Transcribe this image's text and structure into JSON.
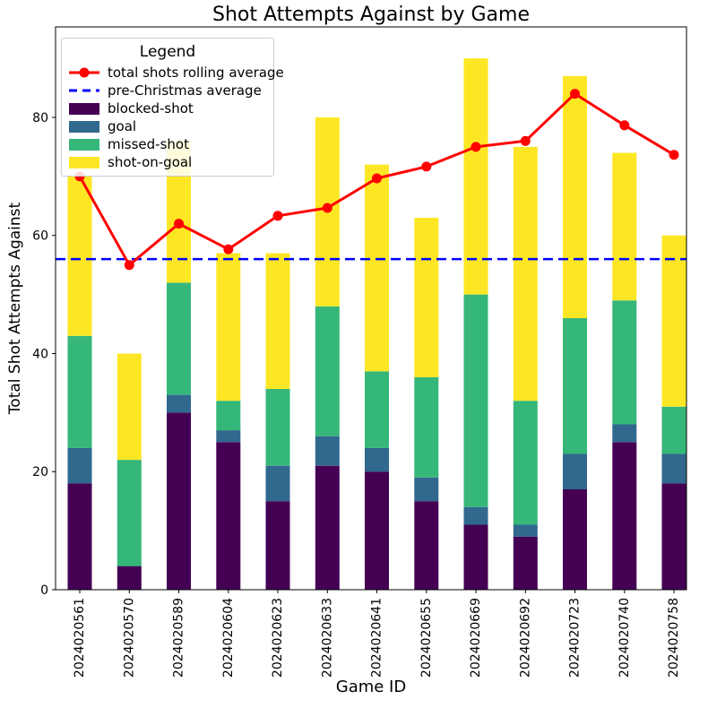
{
  "legend": {
    "title": "Legend",
    "entries": [
      {
        "label": "total shots rolling average",
        "type": "line-marker",
        "color": "#ff0000"
      },
      {
        "label": "pre-Christmas average",
        "type": "dashed-line",
        "color": "#0000ff"
      },
      {
        "label": "blocked-shot",
        "type": "patch",
        "color": "#440154"
      },
      {
        "label": "goal",
        "type": "patch",
        "color": "#31688e"
      },
      {
        "label": "missed-shot",
        "type": "patch",
        "color": "#35b779"
      },
      {
        "label": "shot-on-goal",
        "type": "patch",
        "color": "#fde725"
      }
    ]
  },
  "chart_data": {
    "type": "bar",
    "stacked": true,
    "title": "Shot Attempts Against by Game",
    "xlabel": "Game ID",
    "ylabel": "Total Shot Attempts Against",
    "categories": [
      "2024020561",
      "2024020570",
      "2024020589",
      "2024020604",
      "2024020623",
      "2024020633",
      "2024020641",
      "2024020655",
      "2024020669",
      "2024020692",
      "2024020723",
      "2024020740",
      "2024020758"
    ],
    "series": [
      {
        "name": "blocked-shot",
        "color": "#440154",
        "values": [
          18,
          4,
          30,
          25,
          15,
          21,
          20,
          15,
          11,
          9,
          17,
          25,
          18
        ]
      },
      {
        "name": "goal",
        "color": "#31688e",
        "values": [
          6,
          0,
          3,
          2,
          6,
          5,
          4,
          4,
          3,
          2,
          6,
          3,
          5
        ]
      },
      {
        "name": "missed-shot",
        "color": "#35b779",
        "values": [
          19,
          18,
          19,
          5,
          13,
          22,
          13,
          17,
          36,
          21,
          23,
          21,
          8
        ]
      },
      {
        "name": "shot-on-goal",
        "color": "#fde725",
        "values": [
          27,
          18,
          24,
          25,
          23,
          32,
          35,
          27,
          40,
          43,
          41,
          25,
          29
        ]
      }
    ],
    "bar_totals": [
      70,
      40,
      76,
      57,
      57,
      80,
      72,
      63,
      90,
      75,
      87,
      74,
      60
    ],
    "line_series": {
      "name": "total shots rolling average",
      "color": "#ff0000",
      "values": [
        70,
        55,
        62,
        57.67,
        63.33,
        64.67,
        69.67,
        71.67,
        75,
        76,
        84,
        78.67,
        73.67
      ]
    },
    "reference_line": {
      "name": "pre-Christmas average",
      "color": "#0000ff",
      "style": "dashed",
      "value": 56
    },
    "yticks": [
      0,
      20,
      40,
      60,
      80
    ],
    "ylim": [
      0,
      95.33
    ],
    "grid": false,
    "legend_position": "upper-left"
  }
}
